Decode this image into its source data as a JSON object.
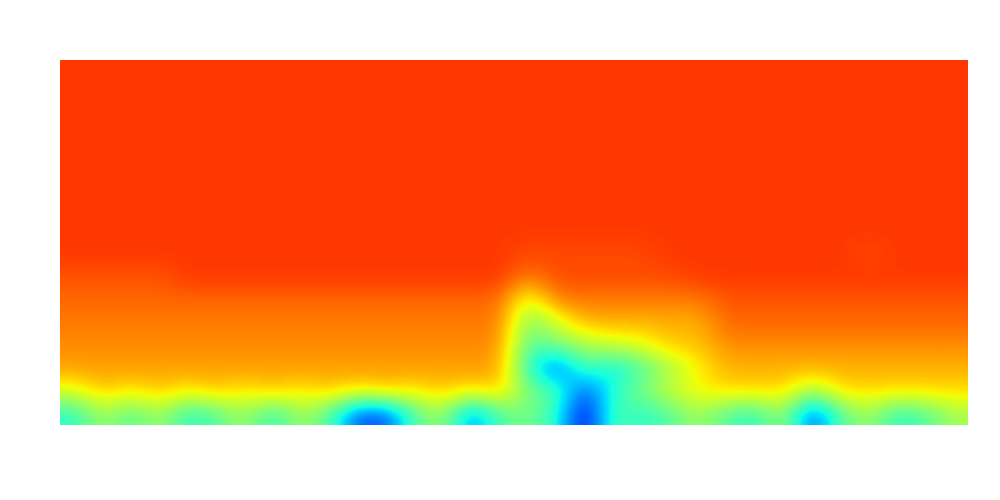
{
  "chart_data": {
    "type": "heatmap",
    "tick_labels": false,
    "color_range": [
      0,
      1
    ],
    "cells": [
      [
        0.85,
        0.85,
        0.85,
        0.85,
        0.85,
        0.85,
        0.85,
        0.85,
        0.85,
        0.85,
        0.85,
        0.85,
        0.85,
        0.85,
        0.85,
        0.85,
        0.85,
        0.85,
        0.85,
        0.85,
        0.85,
        0.85,
        0.85,
        0.85,
        0.85,
        0.85,
        0.85,
        0.85,
        0.85,
        0.85,
        0.85,
        0.85
      ],
      [
        0.85,
        0.85,
        0.85,
        0.85,
        0.85,
        0.85,
        0.85,
        0.85,
        0.85,
        0.85,
        0.85,
        0.85,
        0.85,
        0.85,
        0.85,
        0.85,
        0.85,
        0.85,
        0.85,
        0.85,
        0.85,
        0.85,
        0.85,
        0.85,
        0.85,
        0.85,
        0.85,
        0.85,
        0.85,
        0.85,
        0.85,
        0.85
      ],
      [
        0.85,
        0.85,
        0.85,
        0.85,
        0.85,
        0.85,
        0.85,
        0.85,
        0.85,
        0.85,
        0.85,
        0.85,
        0.85,
        0.85,
        0.85,
        0.85,
        0.85,
        0.85,
        0.85,
        0.85,
        0.85,
        0.85,
        0.85,
        0.85,
        0.85,
        0.85,
        0.85,
        0.85,
        0.85,
        0.85,
        0.85,
        0.85
      ],
      [
        0.85,
        0.85,
        0.85,
        0.85,
        0.85,
        0.85,
        0.85,
        0.85,
        0.85,
        0.85,
        0.85,
        0.85,
        0.85,
        0.85,
        0.85,
        0.85,
        0.85,
        0.85,
        0.85,
        0.85,
        0.85,
        0.85,
        0.85,
        0.85,
        0.85,
        0.85,
        0.85,
        0.85,
        0.85,
        0.85,
        0.85,
        0.85
      ],
      [
        0.85,
        0.85,
        0.85,
        0.85,
        0.85,
        0.85,
        0.85,
        0.85,
        0.85,
        0.85,
        0.85,
        0.85,
        0.85,
        0.85,
        0.85,
        0.85,
        0.85,
        0.85,
        0.85,
        0.85,
        0.85,
        0.85,
        0.85,
        0.85,
        0.85,
        0.85,
        0.85,
        0.85,
        0.85,
        0.85,
        0.85,
        0.85
      ],
      [
        0.85,
        0.85,
        0.85,
        0.85,
        0.85,
        0.85,
        0.85,
        0.85,
        0.85,
        0.85,
        0.85,
        0.85,
        0.85,
        0.85,
        0.85,
        0.85,
        0.85,
        0.85,
        0.85,
        0.85,
        0.85,
        0.85,
        0.85,
        0.85,
        0.85,
        0.85,
        0.85,
        0.85,
        0.85,
        0.85,
        0.85,
        0.85
      ],
      [
        0.85,
        0.85,
        0.85,
        0.85,
        0.85,
        0.85,
        0.85,
        0.85,
        0.85,
        0.85,
        0.85,
        0.85,
        0.85,
        0.85,
        0.85,
        0.85,
        0.85,
        0.85,
        0.85,
        0.85,
        0.85,
        0.85,
        0.85,
        0.85,
        0.85,
        0.85,
        0.85,
        0.85,
        0.85,
        0.85,
        0.85,
        0.85
      ],
      [
        0.85,
        0.85,
        0.85,
        0.85,
        0.85,
        0.85,
        0.85,
        0.85,
        0.85,
        0.85,
        0.85,
        0.85,
        0.85,
        0.85,
        0.85,
        0.85,
        0.85,
        0.85,
        0.85,
        0.85,
        0.85,
        0.85,
        0.85,
        0.85,
        0.85,
        0.85,
        0.85,
        0.85,
        0.85,
        0.85,
        0.85,
        0.85
      ],
      [
        0.85,
        0.85,
        0.85,
        0.85,
        0.85,
        0.85,
        0.85,
        0.85,
        0.85,
        0.85,
        0.85,
        0.85,
        0.85,
        0.85,
        0.85,
        0.85,
        0.83,
        0.83,
        0.83,
        0.83,
        0.83,
        0.85,
        0.85,
        0.85,
        0.85,
        0.85,
        0.85,
        0.85,
        0.83,
        0.85,
        0.85,
        0.85
      ],
      [
        0.82,
        0.82,
        0.82,
        0.82,
        0.85,
        0.85,
        0.85,
        0.85,
        0.85,
        0.85,
        0.85,
        0.85,
        0.85,
        0.85,
        0.85,
        0.85,
        0.78,
        0.83,
        0.83,
        0.83,
        0.83,
        0.83,
        0.85,
        0.85,
        0.85,
        0.85,
        0.85,
        0.85,
        0.85,
        0.85,
        0.85,
        0.85
      ],
      [
        0.8,
        0.8,
        0.8,
        0.8,
        0.8,
        0.8,
        0.8,
        0.8,
        0.8,
        0.8,
        0.8,
        0.8,
        0.8,
        0.8,
        0.8,
        0.8,
        0.6,
        0.78,
        0.78,
        0.78,
        0.78,
        0.78,
        0.78,
        0.82,
        0.82,
        0.82,
        0.82,
        0.82,
        0.82,
        0.82,
        0.82,
        0.82
      ],
      [
        0.78,
        0.78,
        0.78,
        0.78,
        0.78,
        0.78,
        0.78,
        0.78,
        0.78,
        0.78,
        0.78,
        0.78,
        0.78,
        0.78,
        0.78,
        0.78,
        0.5,
        0.6,
        0.72,
        0.72,
        0.72,
        0.72,
        0.72,
        0.8,
        0.8,
        0.8,
        0.8,
        0.8,
        0.8,
        0.8,
        0.8,
        0.8
      ],
      [
        0.76,
        0.76,
        0.76,
        0.76,
        0.76,
        0.76,
        0.76,
        0.76,
        0.76,
        0.76,
        0.76,
        0.76,
        0.76,
        0.76,
        0.76,
        0.76,
        0.45,
        0.5,
        0.55,
        0.6,
        0.62,
        0.7,
        0.7,
        0.76,
        0.76,
        0.76,
        0.76,
        0.76,
        0.76,
        0.76,
        0.76,
        0.76
      ],
      [
        0.74,
        0.74,
        0.74,
        0.74,
        0.74,
        0.74,
        0.74,
        0.74,
        0.74,
        0.74,
        0.74,
        0.74,
        0.74,
        0.74,
        0.74,
        0.74,
        0.4,
        0.2,
        0.45,
        0.35,
        0.45,
        0.55,
        0.65,
        0.72,
        0.72,
        0.72,
        0.72,
        0.72,
        0.72,
        0.72,
        0.72,
        0.72
      ],
      [
        0.62,
        0.7,
        0.66,
        0.7,
        0.66,
        0.7,
        0.66,
        0.7,
        0.66,
        0.7,
        0.66,
        0.7,
        0.66,
        0.7,
        0.66,
        0.7,
        0.5,
        0.45,
        0.2,
        0.4,
        0.5,
        0.6,
        0.65,
        0.68,
        0.68,
        0.68,
        0.55,
        0.68,
        0.68,
        0.68,
        0.68,
        0.68
      ],
      [
        0.4,
        0.55,
        0.45,
        0.55,
        0.4,
        0.45,
        0.55,
        0.4,
        0.55,
        0.45,
        0.2,
        0.2,
        0.45,
        0.55,
        0.25,
        0.45,
        0.5,
        0.4,
        0.1,
        0.45,
        0.4,
        0.45,
        0.55,
        0.45,
        0.4,
        0.55,
        0.2,
        0.45,
        0.55,
        0.4,
        0.45,
        0.55
      ]
    ]
  }
}
